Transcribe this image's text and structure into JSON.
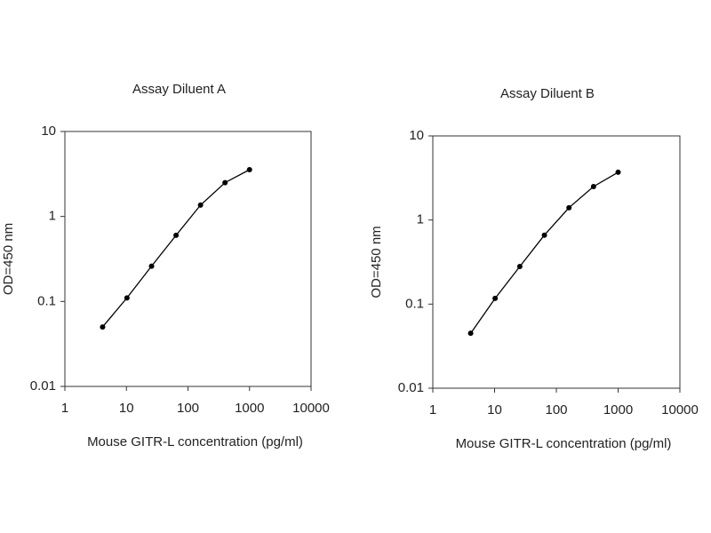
{
  "chart_data": [
    {
      "type": "line",
      "title": "Assay Diluent A",
      "x_label": "Mouse GITR-L concentration (pg/ml)",
      "y_label": "OD=450 nm",
      "x": [
        4.1,
        10.2,
        25.6,
        64,
        160,
        400,
        1000
      ],
      "values": [
        0.05,
        0.11,
        0.26,
        0.6,
        1.36,
        2.5,
        3.55
      ],
      "color": "#000000",
      "xlim": [
        1,
        10000
      ],
      "ylim": [
        0.01,
        10
      ],
      "xticks": [
        1,
        10,
        100,
        1000,
        10000
      ],
      "yticks": [
        0.01,
        0.1,
        1,
        10
      ],
      "x_log": true,
      "y_log": true
    },
    {
      "type": "line",
      "title": "Assay Diluent B",
      "x_label": "Mouse GITR-L concentration (pg/ml)",
      "y_label": "OD=450 nm",
      "x": [
        4.1,
        10.2,
        25.6,
        64,
        160,
        400,
        1000
      ],
      "values": [
        0.045,
        0.117,
        0.28,
        0.66,
        1.4,
        2.5,
        3.7
      ],
      "color": "#000000",
      "xlim": [
        1,
        10000
      ],
      "ylim": [
        0.01,
        10
      ],
      "xticks": [
        1,
        10,
        100,
        1000,
        10000
      ],
      "yticks": [
        0.01,
        0.1,
        1,
        10
      ],
      "x_log": true,
      "y_log": true
    }
  ]
}
